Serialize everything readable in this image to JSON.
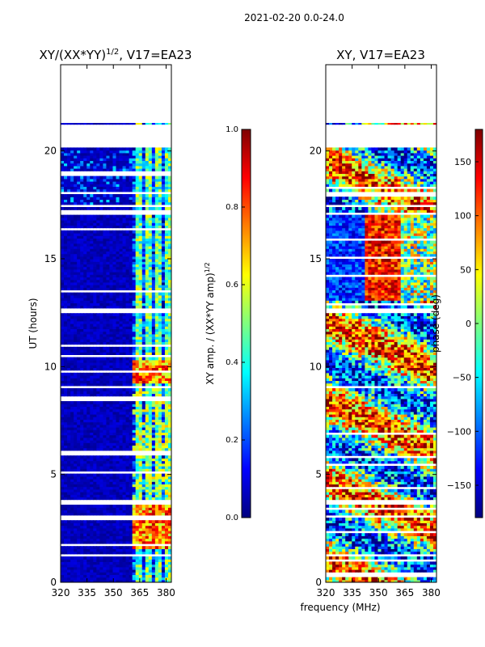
{
  "suptitle": "2021-02-20 0.0-24.0",
  "xlabel": "frequency (MHz)",
  "colors": {
    "jet": [
      "#00007f",
      "#0000ff",
      "#007fff",
      "#00ffff",
      "#7fff7f",
      "#ffff00",
      "#ff7f00",
      "#ff0000",
      "#7f0000"
    ],
    "gap": "#ffffff",
    "frame": "#000000"
  },
  "chart_data": [
    {
      "type": "heatmap",
      "title": "XY/(XX*YY)",
      "title_sup": "1/2",
      "title_suffix": ", V17=EA23",
      "xlabel": "",
      "ylabel": "UT (hours)",
      "xlim": [
        320,
        383
      ],
      "ylim": [
        0,
        24
      ],
      "xticks": [
        320,
        335,
        350,
        365,
        380
      ],
      "yticks": [
        0,
        5,
        10,
        15,
        20
      ],
      "data_coverage_hours": [
        0,
        21.3
      ],
      "gap_hours": [
        [
          20.1,
          21.2
        ],
        [
          17.9,
          18.1
        ],
        [
          17.3,
          17.5
        ],
        [
          12.4,
          12.7
        ],
        [
          8.9,
          9.1
        ],
        [
          3.6,
          3.8
        ],
        [
          1.1,
          1.3
        ]
      ],
      "colorbar": {
        "label": "XY amp. / (XX*YY amp)",
        "label_sup": "1/2",
        "range": [
          0.0,
          1.0
        ],
        "ticks": [
          "0.0",
          "0.2",
          "0.4",
          "0.6",
          "0.8",
          "1.0"
        ]
      }
    },
    {
      "type": "heatmap",
      "title": "XY, V17=EA23",
      "xlabel": "",
      "ylabel": "",
      "xlim": [
        320,
        383
      ],
      "ylim": [
        0,
        24
      ],
      "xticks": [
        320,
        335,
        350,
        365,
        380
      ],
      "yticks": [
        0,
        5,
        10,
        15,
        20
      ],
      "data_coverage_hours": [
        0,
        21.3
      ],
      "colorbar": {
        "label": "phase (deg)",
        "range": [
          -180,
          180
        ],
        "ticks": [
          "150",
          "100",
          "50",
          "0",
          "−50",
          "−100",
          "−150"
        ],
        "tick_values": [
          150,
          100,
          50,
          0,
          -50,
          -100,
          -150
        ]
      }
    }
  ]
}
